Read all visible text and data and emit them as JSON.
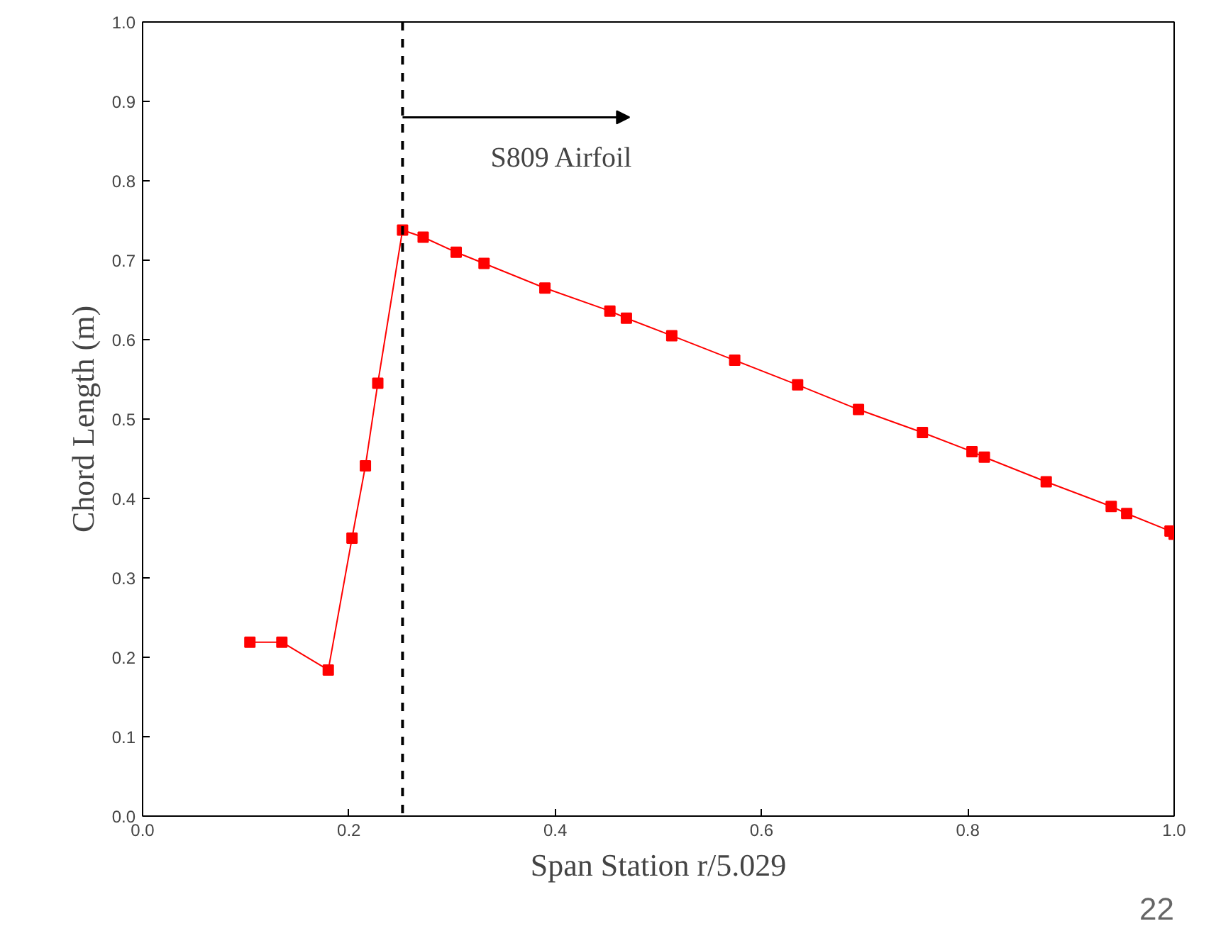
{
  "chart_data": {
    "type": "line",
    "xlabel": "Span Station r/5.029",
    "ylabel": "Chord Length (m)",
    "x": [
      0.104,
      0.135,
      0.18,
      0.203,
      0.216,
      0.228,
      0.252,
      0.272,
      0.304,
      0.331,
      0.39,
      0.453,
      0.469,
      0.513,
      0.574,
      0.635,
      0.694,
      0.756,
      0.804,
      0.816,
      0.876,
      0.939,
      0.954,
      0.996,
      1.0
    ],
    "series": [
      {
        "color": "#ff0000",
        "values": [
          0.219,
          0.219,
          0.184,
          0.35,
          0.441,
          0.545,
          0.738,
          0.729,
          0.71,
          0.696,
          0.665,
          0.636,
          0.627,
          0.605,
          0.574,
          0.543,
          0.512,
          0.483,
          0.459,
          0.452,
          0.421,
          0.39,
          0.381,
          0.359,
          0.355
        ]
      }
    ],
    "xlim": [
      0.0,
      1.0
    ],
    "ylim": [
      0.0,
      1.0
    ],
    "xticks": [
      "0.0",
      0.2,
      0.4,
      0.6,
      0.8,
      "1.0"
    ],
    "yticks": [
      {
        "value": 0,
        "label": "0.0"
      },
      0.1,
      0.2,
      0.3,
      0.4,
      0.5,
      0.6,
      0.7,
      0.8,
      0.9,
      {
        "value": 1,
        "label": "1.0"
      }
    ],
    "marker": "square",
    "grid": false,
    "ref_lines": [
      {
        "axis": "x",
        "value": 0.252,
        "line_style": "dashed",
        "color": "#000000"
      }
    ],
    "annotations": [
      {
        "text": "S809 Airfoil",
        "x": 0.252,
        "y": 0.88
      },
      "22"
    ]
  }
}
